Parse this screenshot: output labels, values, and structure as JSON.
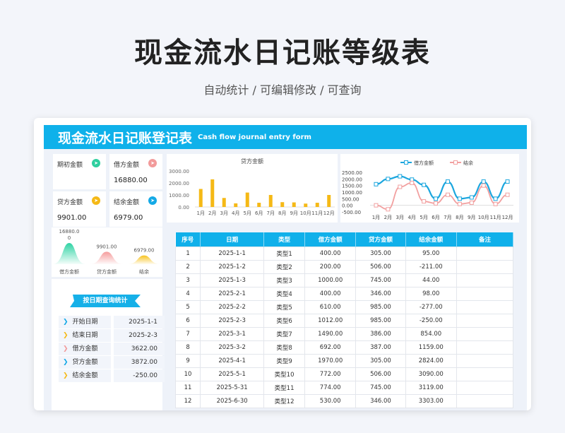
{
  "page": {
    "title": "现金流水日记账等级表",
    "subtitle": "自动统计 /  可编辑修改  /  可查询"
  },
  "header": {
    "title_zh": "现金流水日记账登记表",
    "title_en": "Cash flow journal entry form"
  },
  "kpis": [
    {
      "label": "期初金额",
      "value": "",
      "color": "#2fcf9f",
      "icon": "send-icon"
    },
    {
      "label": "借方金额",
      "value": "16880.00",
      "color": "#f29a9a",
      "icon": "send-icon"
    },
    {
      "label": "贷方金额",
      "value": "9901.00",
      "color": "#f5b916",
      "icon": "send-icon"
    },
    {
      "label": "结余金额",
      "value": "6979.00",
      "color": "#14a9e6",
      "icon": "send-icon"
    }
  ],
  "chart_data": [
    {
      "type": "bar",
      "title": "贷方金额",
      "categories": [
        "1月",
        "2月",
        "3月",
        "4月",
        "5月",
        "6月",
        "7月",
        "8月",
        "9月",
        "10月",
        "11月",
        "12月"
      ],
      "values": [
        1500,
        2300,
        750,
        300,
        1200,
        350,
        1000,
        400,
        380,
        280,
        350,
        1000
      ],
      "ylim": [
        0,
        3000
      ],
      "yticks": [
        "0.00",
        "1000.00",
        "2000.00",
        "3000.00"
      ],
      "color": "#f5b916"
    },
    {
      "type": "line",
      "categories": [
        "1月",
        "2月",
        "3月",
        "4月",
        "5月",
        "6月",
        "7月",
        "8月",
        "9月",
        "10月",
        "11月",
        "12月"
      ],
      "ylim": [
        -500,
        2500
      ],
      "yticks": [
        "-500.00",
        "0.00",
        "500.00",
        "1000.00",
        "1500.00",
        "2000.00",
        "2500.00"
      ],
      "legend": "top",
      "series": [
        {
          "name": "借方金额",
          "color": "#1ba6de",
          "values": [
            1600,
            2000,
            2200,
            1950,
            1550,
            500,
            1800,
            500,
            600,
            1800,
            500,
            1800
          ]
        },
        {
          "name": "结余",
          "color": "#f2a0a0",
          "values": [
            0,
            -300,
            1400,
            1700,
            300,
            150,
            800,
            100,
            200,
            1500,
            100,
            800
          ]
        }
      ]
    },
    {
      "type": "area",
      "categories": [
        "借方金额",
        "贷方金额",
        "结余"
      ],
      "values": [
        16880,
        9901,
        6979
      ],
      "labels": [
        "16880.0\n0",
        "9901.00",
        "6979.00"
      ],
      "colors": [
        "#2fd3a4",
        "#f59c9c",
        "#f7c21c"
      ]
    }
  ],
  "query": {
    "title": "按日期查询统计",
    "rows": [
      {
        "label": "开始日期",
        "value": "2025-1-1",
        "color": "#14a9e6"
      },
      {
        "label": "结束日期",
        "value": "2025-2-3",
        "color": "#f5b916"
      },
      {
        "label": "借方金额",
        "value": "3622.00",
        "color": "#f29a9a"
      },
      {
        "label": "贷方金额",
        "value": "3872.00",
        "color": "#14a9e6"
      },
      {
        "label": "结余金额",
        "value": "-250.00",
        "color": "#f5b916"
      }
    ]
  },
  "table": {
    "headers": [
      "序号",
      "日期",
      "类型",
      "借方金额",
      "贷方金额",
      "结余金额",
      "备注"
    ],
    "rows": [
      [
        "1",
        "2025-1-1",
        "类型1",
        "400.00",
        "305.00",
        "95.00",
        ""
      ],
      [
        "2",
        "2025-1-2",
        "类型2",
        "200.00",
        "506.00",
        "-211.00",
        ""
      ],
      [
        "3",
        "2025-1-3",
        "类型3",
        "1000.00",
        "745.00",
        "44.00",
        ""
      ],
      [
        "4",
        "2025-2-1",
        "类型4",
        "400.00",
        "346.00",
        "98.00",
        ""
      ],
      [
        "5",
        "2025-2-2",
        "类型5",
        "610.00",
        "985.00",
        "-277.00",
        ""
      ],
      [
        "6",
        "2025-2-3",
        "类型6",
        "1012.00",
        "985.00",
        "-250.00",
        ""
      ],
      [
        "7",
        "2025-3-1",
        "类型7",
        "1490.00",
        "386.00",
        "854.00",
        ""
      ],
      [
        "8",
        "2025-3-2",
        "类型8",
        "692.00",
        "387.00",
        "1159.00",
        ""
      ],
      [
        "9",
        "2025-4-1",
        "类型9",
        "1970.00",
        "305.00",
        "2824.00",
        ""
      ],
      [
        "10",
        "2025-5-1",
        "类型10",
        "772.00",
        "506.00",
        "3090.00",
        ""
      ],
      [
        "11",
        "2025-5-31",
        "类型11",
        "774.00",
        "745.00",
        "3119.00",
        ""
      ],
      [
        "12",
        "2025-6-30",
        "类型12",
        "530.00",
        "346.00",
        "3303.00",
        ""
      ]
    ]
  }
}
